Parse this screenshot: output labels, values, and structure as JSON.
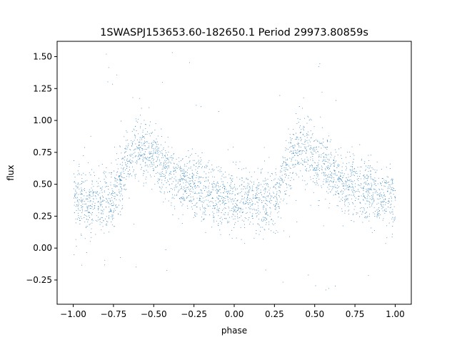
{
  "chart_data": {
    "type": "scatter",
    "title": "1SWASPJ153653.60-182650.1 Period 29973.80859s",
    "xlabel": "phase",
    "ylabel": "flux",
    "xlim": [
      -1.1,
      1.1
    ],
    "ylim": [
      -0.44,
      1.62
    ],
    "xticks": [
      -1.0,
      -0.75,
      -0.5,
      -0.25,
      0.0,
      0.25,
      0.5,
      0.75,
      1.0
    ],
    "xtick_labels": [
      "−1.00",
      "−0.75",
      "−0.50",
      "−0.25",
      "0.00",
      "0.25",
      "0.50",
      "0.75",
      "1.00"
    ],
    "yticks": [
      -0.25,
      0.0,
      0.25,
      0.5,
      0.75,
      1.0,
      1.25,
      1.5
    ],
    "ytick_labels": [
      "−0.25",
      "0.00",
      "0.25",
      "0.50",
      "0.75",
      "1.00",
      "1.25",
      "1.50"
    ],
    "grid": false,
    "marker_color": "#1f77b4",
    "phase_range": [
      -1.0,
      1.0
    ],
    "mean_curve": {
      "x": [
        -1.0,
        -0.9,
        -0.8,
        -0.75,
        -0.7,
        -0.65,
        -0.6,
        -0.55,
        -0.5,
        -0.45,
        -0.4,
        -0.3,
        -0.2,
        -0.1,
        0.0,
        0.1,
        0.2,
        0.25,
        0.3,
        0.35,
        0.4,
        0.45,
        0.5,
        0.55,
        0.6,
        0.7,
        0.8,
        0.9,
        1.0
      ],
      "y": [
        0.38,
        0.36,
        0.36,
        0.4,
        0.55,
        0.72,
        0.8,
        0.77,
        0.7,
        0.64,
        0.58,
        0.5,
        0.45,
        0.4,
        0.38,
        0.36,
        0.36,
        0.4,
        0.55,
        0.72,
        0.8,
        0.77,
        0.7,
        0.64,
        0.58,
        0.5,
        0.45,
        0.4,
        0.38
      ]
    },
    "scatter_sigma": 0.12,
    "flux_range": [
      -0.35,
      1.55
    ]
  }
}
